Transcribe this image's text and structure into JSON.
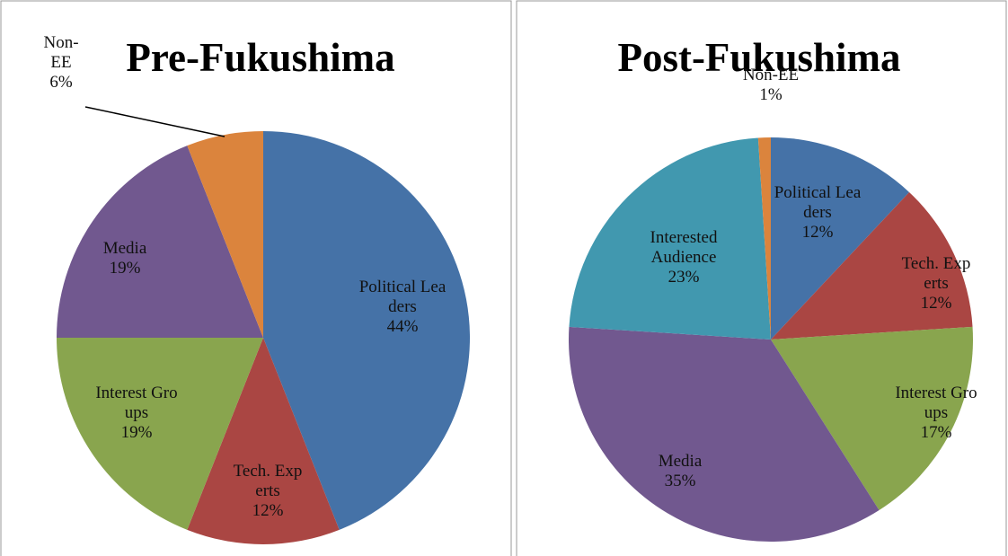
{
  "chart_data": [
    {
      "type": "pie",
      "title": "Pre-Fukushima",
      "categories": [
        "Political Leaders",
        "Tech. Experts",
        "Interest Groups",
        "Media",
        "Non-EE"
      ],
      "values": [
        44,
        12,
        19,
        19,
        6
      ],
      "value_labels": [
        "44%",
        "12%",
        "19%",
        "19%",
        "6%"
      ],
      "colors": [
        "#4572a7",
        "#aa4643",
        "#89a54e",
        "#71588f",
        "#db843d"
      ]
    },
    {
      "type": "pie",
      "title": "Post-Fukushima",
      "categories": [
        "Political Leaders",
        "Tech. Experts",
        "Interest Groups",
        "Media",
        "Interested Audience",
        "Non-EE"
      ],
      "values": [
        12,
        12,
        17,
        35,
        23,
        1
      ],
      "value_labels": [
        "12%",
        "12%",
        "17%",
        "35%",
        "23%",
        "1%"
      ],
      "colors": [
        "#4572a7",
        "#aa4643",
        "#89a54e",
        "#71588f",
        "#4198af",
        "#db843d"
      ]
    }
  ]
}
